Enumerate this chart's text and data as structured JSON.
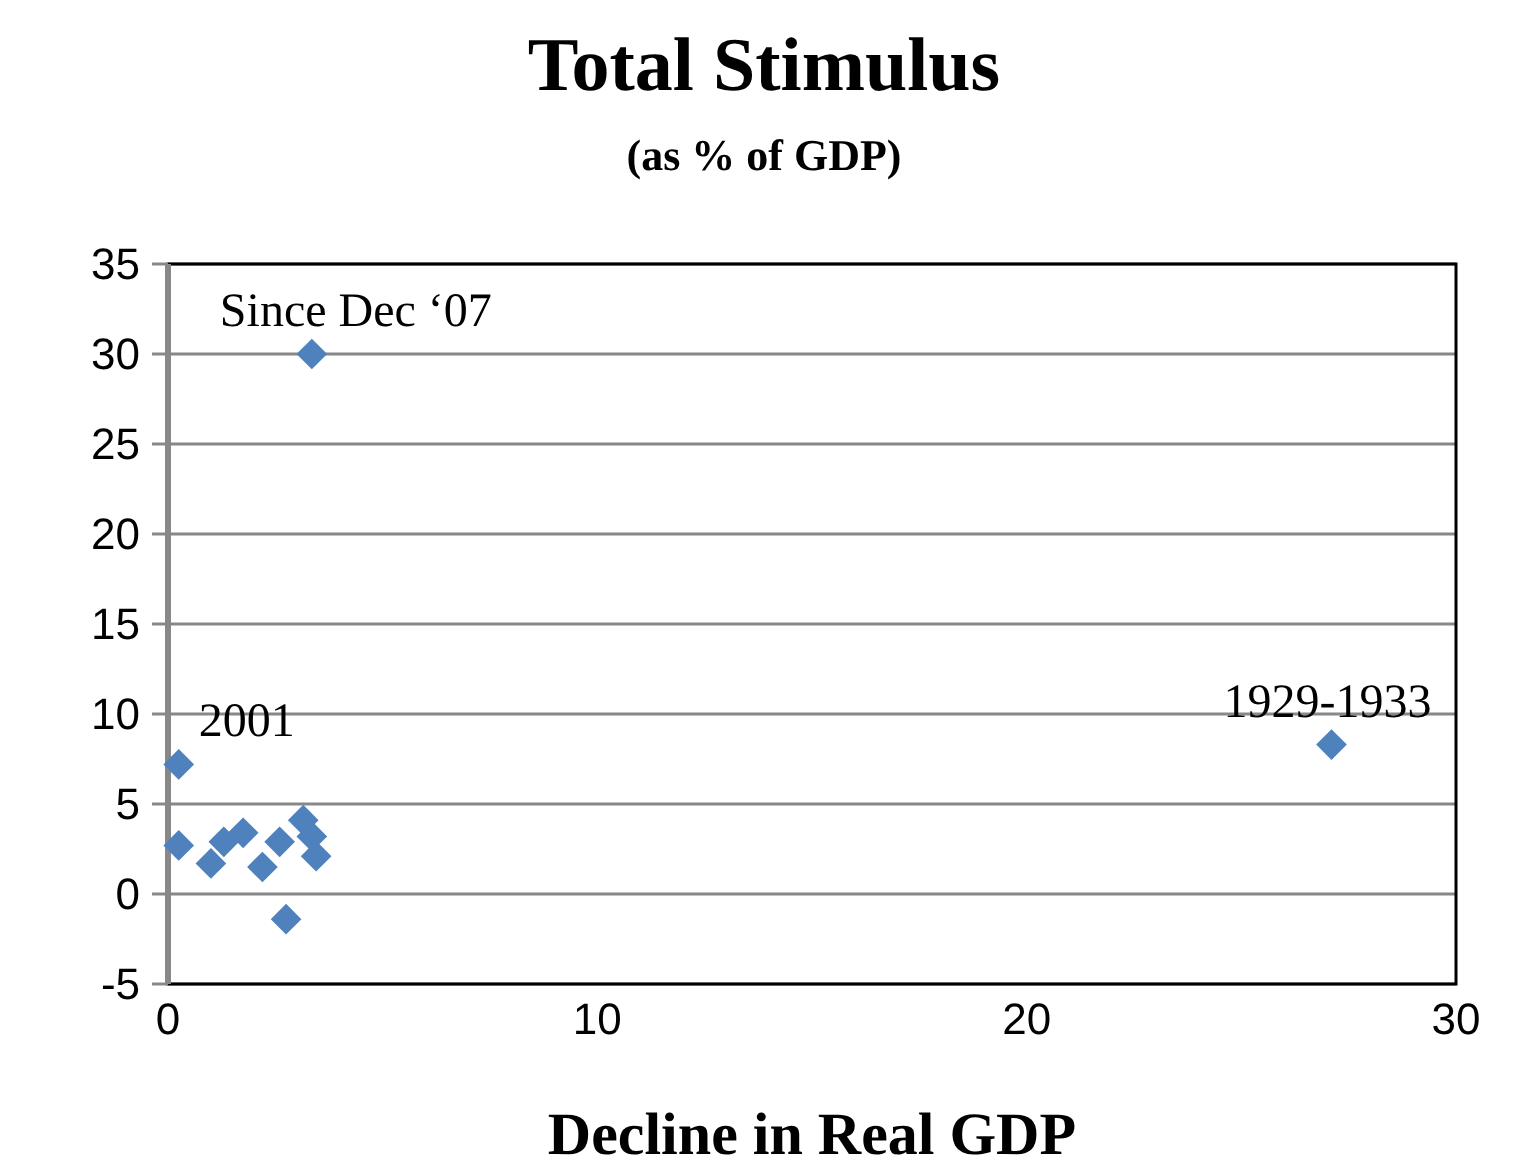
{
  "chart_data": {
    "type": "scatter",
    "title": "Total Stimulus",
    "subtitle": "(as % of GDP)",
    "xlabel": "Decline in Real GDP",
    "x": [
      0.25,
      0.25,
      1.0,
      1.3,
      1.75,
      2.2,
      2.6,
      2.75,
      3.15,
      3.35,
      3.45,
      3.35,
      27.1
    ],
    "series": [
      {
        "color": "#4f81bd",
        "values": [
          7.2,
          2.7,
          1.7,
          2.9,
          3.4,
          1.5,
          2.9,
          -1.4,
          4.1,
          3.2,
          2.1,
          30.0,
          8.3
        ]
      }
    ],
    "xlim": [
      0,
      30
    ],
    "xticks": [
      0,
      10,
      20,
      30
    ],
    "ylim": [
      -5,
      35
    ],
    "yticks": [
      -5,
      0,
      5,
      10,
      15,
      20,
      25,
      30,
      35
    ],
    "grid": "y",
    "marker": "diamond",
    "annotations": [
      {
        "text": "Since Dec ‘07",
        "x": 3.35,
        "y": 30.0
      },
      {
        "text": "2001",
        "x": 0.25,
        "y": 7.2
      },
      {
        "text": "1929-1933",
        "x": 27.1,
        "y": 8.3
      }
    ]
  }
}
